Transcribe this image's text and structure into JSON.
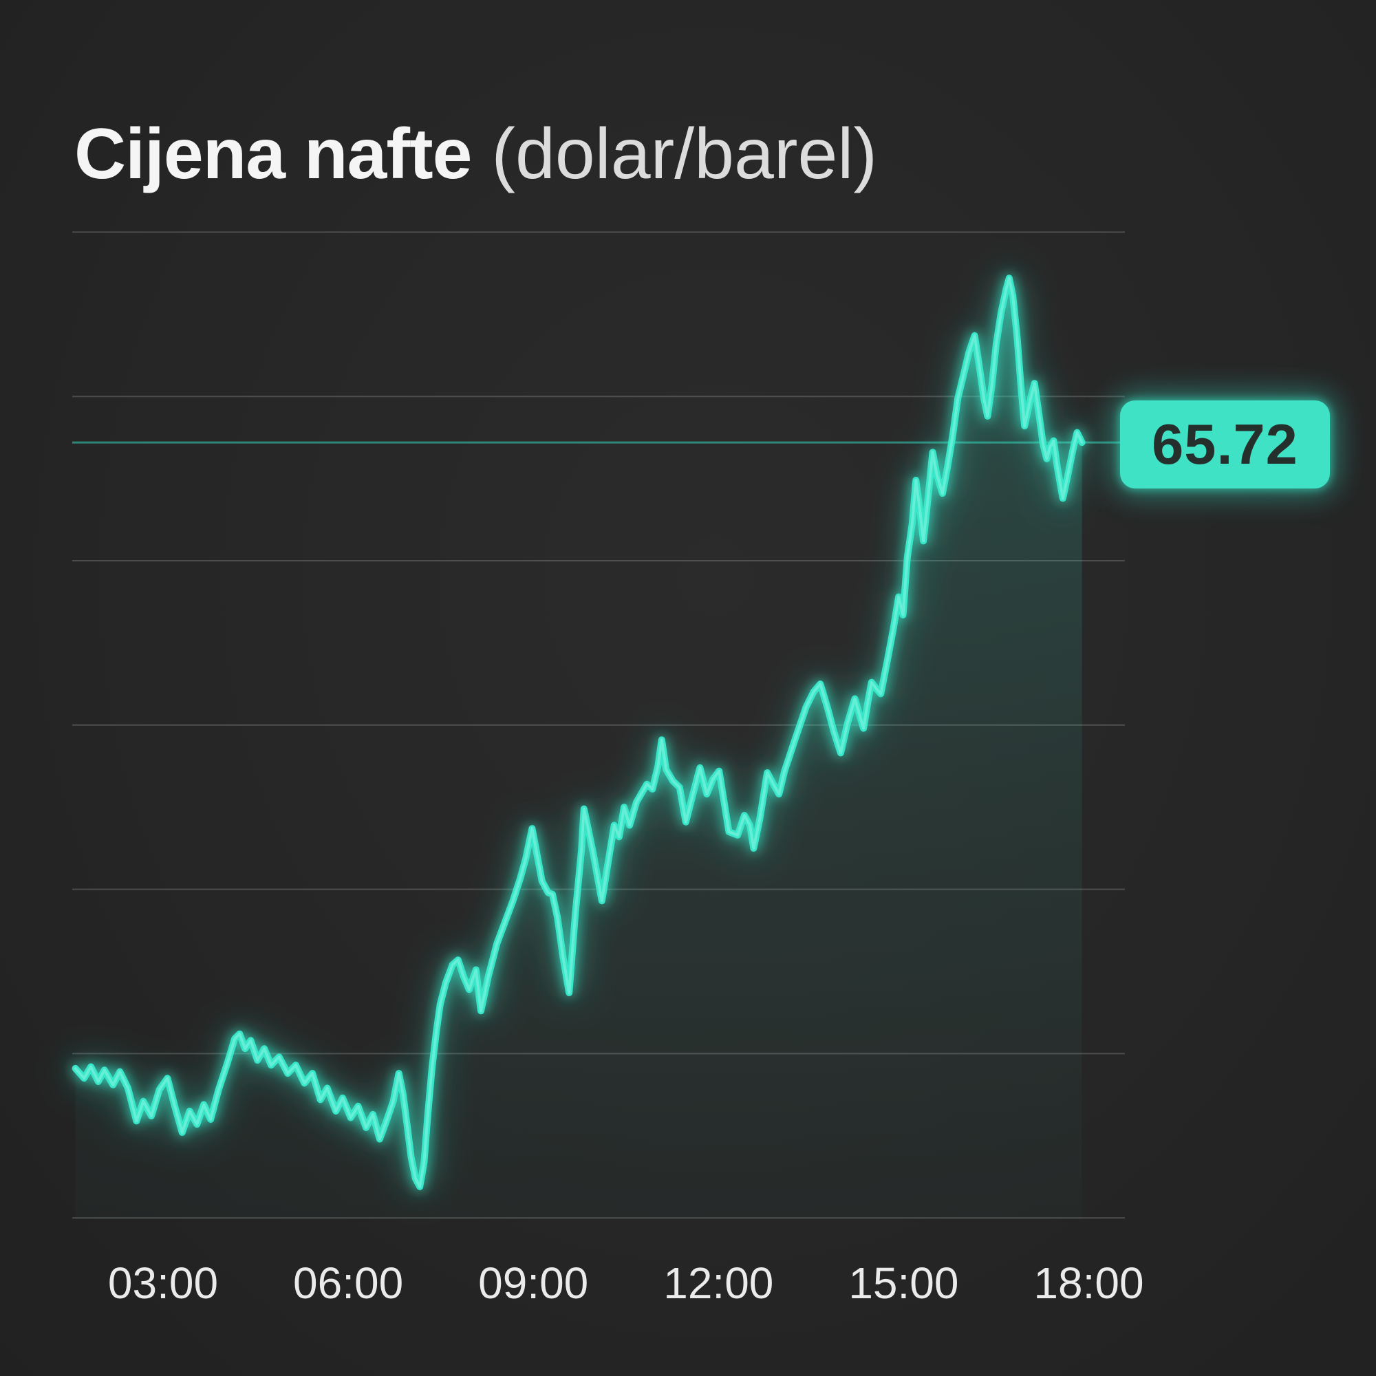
{
  "title": {
    "main": "Cijena nafte",
    "unit": " (dolar/barel)"
  },
  "colors": {
    "background": "#262626",
    "accent": "#38E7C9",
    "line_core": "#8CF4E0",
    "grid": "#8F8F8F",
    "title": "#F5F5F5",
    "subtitle": "#DCDCDC",
    "tick": "#EBEBEB",
    "badge_bg": "#3FE2C5",
    "badge_text": "#25302D",
    "price_line": "#38E7C9"
  },
  "chart_data": {
    "type": "line",
    "title": "Cijena nafte",
    "ylabel": "dolar/barel",
    "xlabel": "",
    "grid": true,
    "legend": false,
    "x_ticks": [
      {
        "t": 3,
        "label": "03:00"
      },
      {
        "t": 6,
        "label": "06:00"
      },
      {
        "t": 9,
        "label": "09:00"
      },
      {
        "t": 12,
        "label": "12:00"
      },
      {
        "t": 15,
        "label": "15:00"
      },
      {
        "t": 18,
        "label": "18:00"
      }
    ],
    "y_gridlines": [
      61,
      62,
      63,
      64,
      65,
      66,
      67
    ],
    "xlim": [
      1.5,
      18.2
    ],
    "ylim": [
      60.9,
      67.0
    ],
    "last_value": 65.72,
    "last_value_label": "65.72",
    "series": [
      {
        "name": "Cijena nafte (dolar/barel)",
        "points": [
          [
            1.58,
            61.91
          ],
          [
            1.72,
            61.85
          ],
          [
            1.83,
            61.92
          ],
          [
            1.95,
            61.83
          ],
          [
            2.05,
            61.9
          ],
          [
            2.19,
            61.81
          ],
          [
            2.3,
            61.89
          ],
          [
            2.43,
            61.79
          ],
          [
            2.57,
            61.59
          ],
          [
            2.68,
            61.71
          ],
          [
            2.81,
            61.62
          ],
          [
            2.94,
            61.78
          ],
          [
            3.07,
            61.85
          ],
          [
            3.19,
            61.68
          ],
          [
            3.31,
            61.52
          ],
          [
            3.43,
            61.65
          ],
          [
            3.55,
            61.57
          ],
          [
            3.66,
            61.69
          ],
          [
            3.77,
            61.6
          ],
          [
            3.9,
            61.78
          ],
          [
            4.04,
            61.94
          ],
          [
            4.16,
            62.09
          ],
          [
            4.24,
            62.12
          ],
          [
            4.33,
            62.03
          ],
          [
            4.42,
            62.08
          ],
          [
            4.53,
            61.96
          ],
          [
            4.64,
            62.03
          ],
          [
            4.75,
            61.93
          ],
          [
            4.88,
            61.98
          ],
          [
            5.02,
            61.88
          ],
          [
            5.15,
            61.93
          ],
          [
            5.29,
            61.82
          ],
          [
            5.42,
            61.88
          ],
          [
            5.55,
            61.72
          ],
          [
            5.66,
            61.79
          ],
          [
            5.8,
            61.65
          ],
          [
            5.91,
            61.73
          ],
          [
            6.04,
            61.61
          ],
          [
            6.16,
            61.68
          ],
          [
            6.29,
            61.55
          ],
          [
            6.4,
            61.63
          ],
          [
            6.51,
            61.48
          ],
          [
            6.62,
            61.59
          ],
          [
            6.73,
            61.71
          ],
          [
            6.82,
            61.88
          ],
          [
            6.89,
            61.75
          ],
          [
            6.96,
            61.55
          ],
          [
            7.02,
            61.37
          ],
          [
            7.09,
            61.24
          ],
          [
            7.16,
            61.19
          ],
          [
            7.23,
            61.34
          ],
          [
            7.29,
            61.63
          ],
          [
            7.36,
            61.92
          ],
          [
            7.43,
            62.14
          ],
          [
            7.49,
            62.3
          ],
          [
            7.58,
            62.43
          ],
          [
            7.69,
            62.54
          ],
          [
            7.78,
            62.57
          ],
          [
            7.87,
            62.47
          ],
          [
            7.96,
            62.39
          ],
          [
            8.07,
            62.51
          ],
          [
            8.15,
            62.26
          ],
          [
            8.27,
            62.47
          ],
          [
            8.41,
            62.67
          ],
          [
            8.54,
            62.8
          ],
          [
            8.67,
            62.93
          ],
          [
            8.79,
            63.07
          ],
          [
            8.88,
            63.19
          ],
          [
            8.98,
            63.37
          ],
          [
            9.05,
            63.23
          ],
          [
            9.14,
            63.05
          ],
          [
            9.24,
            62.98
          ],
          [
            9.31,
            62.97
          ],
          [
            9.39,
            62.83
          ],
          [
            9.48,
            62.59
          ],
          [
            9.58,
            62.37
          ],
          [
            9.68,
            62.85
          ],
          [
            9.78,
            63.24
          ],
          [
            9.82,
            63.49
          ],
          [
            9.97,
            63.22
          ],
          [
            10.11,
            62.93
          ],
          [
            10.21,
            63.16
          ],
          [
            10.31,
            63.39
          ],
          [
            10.39,
            63.32
          ],
          [
            10.47,
            63.5
          ],
          [
            10.56,
            63.39
          ],
          [
            10.67,
            63.53
          ],
          [
            10.84,
            63.64
          ],
          [
            10.93,
            63.61
          ],
          [
            11.02,
            63.75
          ],
          [
            11.08,
            63.91
          ],
          [
            11.15,
            63.73
          ],
          [
            11.26,
            63.66
          ],
          [
            11.37,
            63.62
          ],
          [
            11.47,
            63.41
          ],
          [
            11.58,
            63.57
          ],
          [
            11.7,
            63.74
          ],
          [
            11.81,
            63.58
          ],
          [
            11.91,
            63.67
          ],
          [
            12.01,
            63.72
          ],
          [
            12.17,
            63.35
          ],
          [
            12.31,
            63.33
          ],
          [
            12.42,
            63.45
          ],
          [
            12.51,
            63.39
          ],
          [
            12.57,
            63.25
          ],
          [
            12.67,
            63.43
          ],
          [
            12.79,
            63.71
          ],
          [
            12.89,
            63.64
          ],
          [
            12.98,
            63.58
          ],
          [
            13.07,
            63.72
          ],
          [
            13.15,
            63.81
          ],
          [
            13.23,
            63.9
          ],
          [
            13.32,
            64.0
          ],
          [
            13.42,
            64.11
          ],
          [
            13.54,
            64.2
          ],
          [
            13.65,
            64.25
          ],
          [
            13.77,
            64.1
          ],
          [
            13.87,
            63.96
          ],
          [
            13.98,
            63.83
          ],
          [
            14.09,
            64.01
          ],
          [
            14.21,
            64.16
          ],
          [
            14.28,
            64.07
          ],
          [
            14.35,
            63.98
          ],
          [
            14.42,
            64.14
          ],
          [
            14.48,
            64.26
          ],
          [
            14.56,
            64.22
          ],
          [
            14.63,
            64.19
          ],
          [
            14.74,
            64.4
          ],
          [
            14.83,
            64.58
          ],
          [
            14.92,
            64.78
          ],
          [
            14.99,
            64.67
          ],
          [
            15.06,
            65.02
          ],
          [
            15.14,
            65.23
          ],
          [
            15.2,
            65.49
          ],
          [
            15.27,
            65.29
          ],
          [
            15.32,
            65.12
          ],
          [
            15.4,
            65.4
          ],
          [
            15.47,
            65.66
          ],
          [
            15.54,
            65.52
          ],
          [
            15.63,
            65.41
          ],
          [
            15.71,
            65.57
          ],
          [
            15.79,
            65.75
          ],
          [
            15.88,
            65.99
          ],
          [
            15.97,
            66.13
          ],
          [
            16.06,
            66.27
          ],
          [
            16.15,
            66.37
          ],
          [
            16.24,
            66.15
          ],
          [
            16.3,
            65.99
          ],
          [
            16.36,
            65.88
          ],
          [
            16.43,
            66.07
          ],
          [
            16.5,
            66.32
          ],
          [
            16.58,
            66.51
          ],
          [
            16.66,
            66.65
          ],
          [
            16.71,
            66.72
          ],
          [
            16.77,
            66.61
          ],
          [
            16.84,
            66.36
          ],
          [
            16.9,
            66.07
          ],
          [
            16.96,
            65.82
          ],
          [
            17.04,
            65.96
          ],
          [
            17.12,
            66.08
          ],
          [
            17.19,
            65.9
          ],
          [
            17.26,
            65.71
          ],
          [
            17.32,
            65.62
          ],
          [
            17.37,
            65.69
          ],
          [
            17.43,
            65.73
          ],
          [
            17.49,
            65.57
          ],
          [
            17.58,
            65.38
          ],
          [
            17.66,
            65.52
          ],
          [
            17.74,
            65.67
          ],
          [
            17.81,
            65.78
          ],
          [
            17.89,
            65.72
          ]
        ]
      }
    ]
  }
}
